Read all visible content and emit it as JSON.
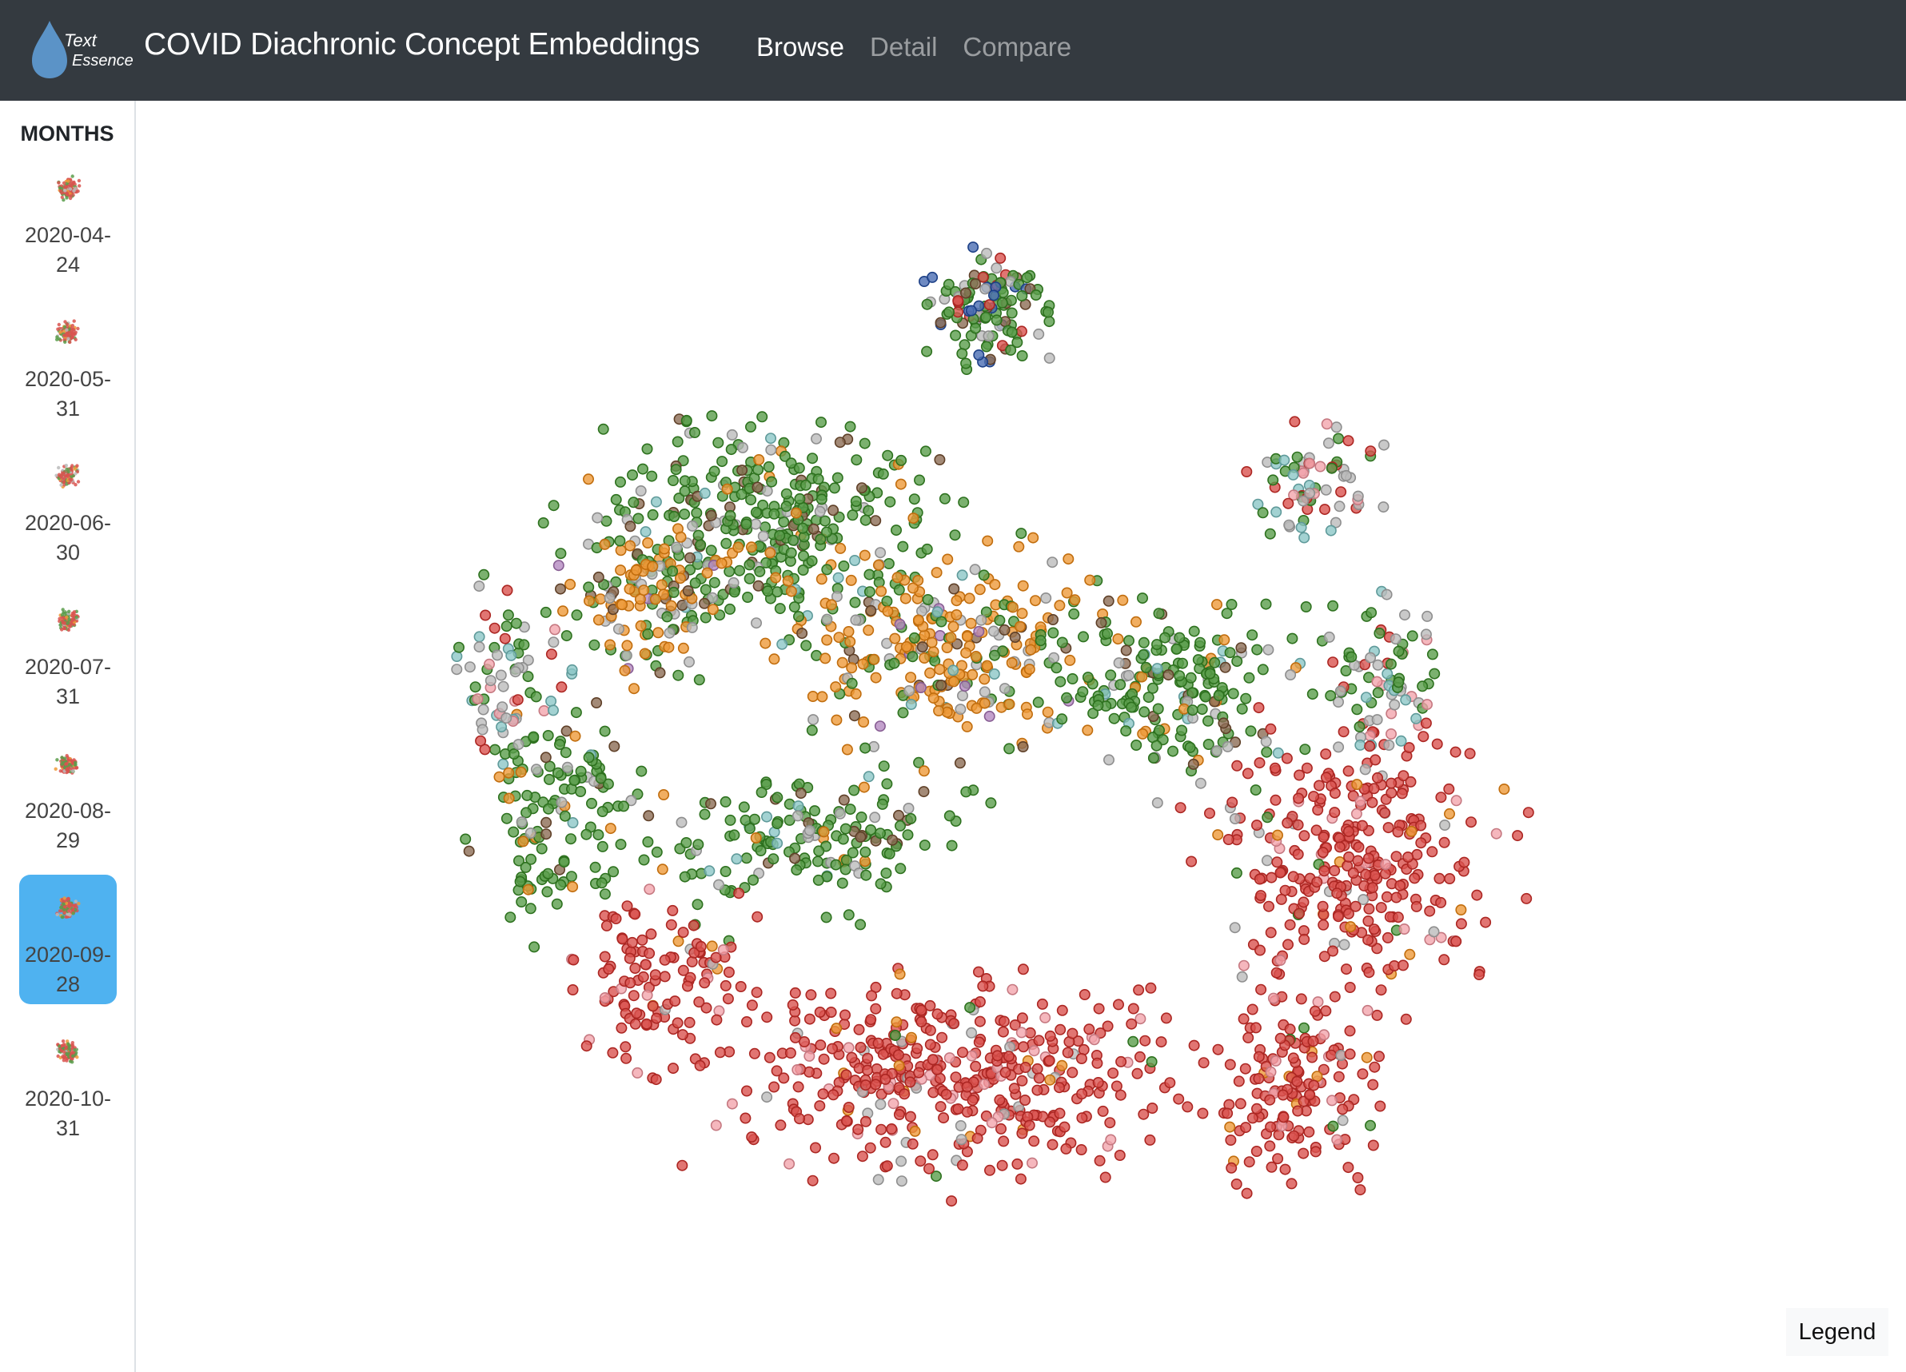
{
  "app": {
    "logo_text_top": "Text",
    "logo_text_bottom": "Essence",
    "title": "COVID Diachronic Concept Embeddings"
  },
  "nav": {
    "items": [
      {
        "label": "Browse",
        "active": true
      },
      {
        "label": "Detail",
        "active": false
      },
      {
        "label": "Compare",
        "active": false
      }
    ]
  },
  "sidebar": {
    "title": "MONTHS",
    "months": [
      {
        "label": "2020-04-24",
        "active": false
      },
      {
        "label": "2020-05-31",
        "active": false
      },
      {
        "label": "2020-06-30",
        "active": false
      },
      {
        "label": "2020-07-31",
        "active": false
      },
      {
        "label": "2020-08-29",
        "active": false
      },
      {
        "label": "2020-09-28",
        "active": true
      },
      {
        "label": "2020-10-31",
        "active": false
      }
    ]
  },
  "legend_label": "Legend",
  "colors": {
    "navbar": "#343a40",
    "active_month": "#4fb2f0",
    "logo_drop": "#5b93c7",
    "cluster_red": "#d9534f",
    "cluster_green": "#5a9e4b",
    "cluster_orange": "#ee9a3a",
    "cluster_gray": "#bbbbbb",
    "cluster_brown": "#8c6d55",
    "cluster_teal": "#8cc7c7",
    "cluster_blue": "#4a6db3",
    "cluster_pink": "#f2a5ad",
    "cluster_purple": "#b48ac0"
  }
}
